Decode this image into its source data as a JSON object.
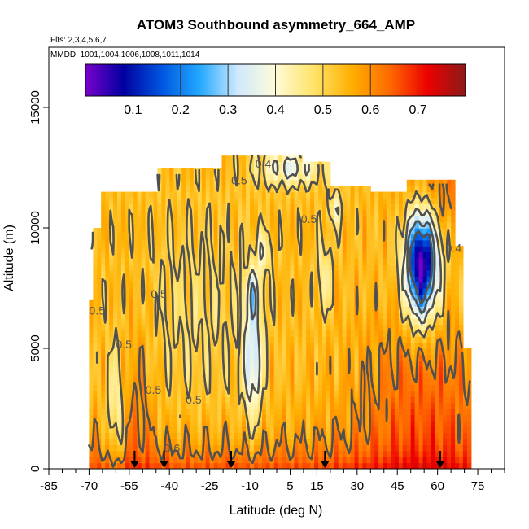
{
  "chart_data": {
    "type": "heatmap",
    "title": "ATOM3 Southbound asymmetry_664_AMP",
    "subtitle_flights": "Flts: 2,3,4,5,6,7",
    "subtitle_dates": "MMDD: 1001,1004,1006,1008,1011,1014",
    "xlabel": "Latitude (deg N)",
    "ylabel": "Altitude (m)",
    "xlim": [
      -85,
      85
    ],
    "ylim": [
      0,
      17500
    ],
    "x_ticks_labeled": [
      -85,
      -70,
      -55,
      -40,
      -25,
      -10,
      5,
      15,
      30,
      45,
      60,
      75
    ],
    "x_ticks_minor": [
      -80,
      -75,
      -65,
      -60,
      -50,
      -45,
      -35,
      -30,
      -20,
      -15,
      -5,
      0,
      10,
      20,
      25,
      35,
      40,
      50,
      55,
      65,
      70,
      80,
      85
    ],
    "y_ticks": [
      0,
      5000,
      10000,
      15000
    ],
    "colorbar": {
      "range": [
        0,
        0.8
      ],
      "ticks": [
        0.1,
        0.2,
        0.3,
        0.4,
        0.5,
        0.6,
        0.7
      ],
      "tick_labels": [
        "0.1",
        "0.2",
        "0.3",
        "0.4",
        "0.5",
        "0.6",
        "0.7"
      ],
      "stops": [
        "#7a00cc",
        "#0000a0",
        "#0055e0",
        "#22a8ff",
        "#cfe9ff",
        "#fffbd8",
        "#ffe36a",
        "#ffb000",
        "#ff6a00",
        "#ee0000",
        "#8b1a1a"
      ]
    },
    "contour_labels": [
      {
        "text": "0.4",
        "lat": -5,
        "alt": 12500
      },
      {
        "text": "0.5",
        "lat": -14,
        "alt": 11800
      },
      {
        "text": "0.5",
        "lat": 12,
        "alt": 10200
      },
      {
        "text": "0.4",
        "lat": 66,
        "alt": 9000
      },
      {
        "text": "0.5",
        "lat": -67,
        "alt": 6400
      },
      {
        "text": "0.5",
        "lat": -44,
        "alt": 7100
      },
      {
        "text": "0.5",
        "lat": -57,
        "alt": 5000
      },
      {
        "text": "0.5",
        "lat": -46,
        "alt": 3100
      },
      {
        "text": "0.5",
        "lat": -31,
        "alt": 2700
      },
      {
        "text": "0.6",
        "lat": -39,
        "alt": 700
      }
    ],
    "flight_arrows_lat": [
      -53,
      -42,
      -17,
      18,
      61
    ],
    "data_extent": {
      "lat_min": -70,
      "lat_max": 72,
      "alt_max": 13000
    }
  }
}
